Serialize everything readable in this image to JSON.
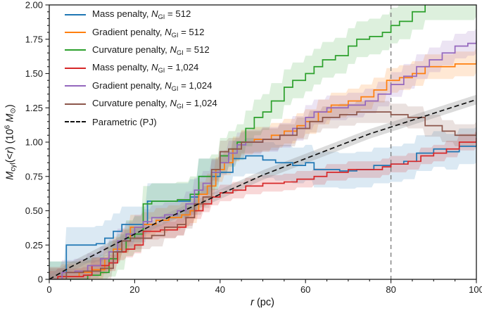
{
  "labels": {
    "y_M": "M",
    "y_cyl": "cyl",
    "y_open": "(<",
    "y_r": "r",
    "y_mid": ") (10",
    "y_exp": "6",
    "y_sp": " ",
    "y_Munit": "M",
    "y_sun": "⊙",
    "y_end": ")",
    "x_r": "r",
    "x_unit": " (pc)"
  },
  "legend": {
    "n_symbol": "N",
    "n_sub": "GI",
    "equals": " = "
  },
  "chart_data": {
    "type": "line",
    "title": "",
    "xlabel": "r (pc)",
    "ylabel": "M_cyl(<r) (10^6 M_sun)",
    "xlim": [
      0,
      100
    ],
    "ylim": [
      0,
      2.0
    ],
    "grid": false,
    "legend_position": "upper left",
    "x_major_ticks": [
      0,
      20,
      40,
      60,
      80,
      100
    ],
    "x_tick_labels": [
      "0",
      "20",
      "40",
      "60",
      "80",
      "100"
    ],
    "y_major_ticks": [
      0,
      0.25,
      0.5,
      0.75,
      1.0,
      1.25,
      1.5,
      1.75,
      2.0
    ],
    "y_tick_labels": [
      "0",
      "0.25",
      "0.50",
      "0.75",
      "1.00",
      "1.25",
      "1.50",
      "1.75",
      "2.00"
    ],
    "x_minor_step": 5,
    "y_minor_step": 0.05,
    "vline_x": 80,
    "vline_color": "#808080",
    "series": [
      {
        "label_prefix": "Mass penalty, ",
        "n_value": "512",
        "color": "#1f77b4",
        "style": "step",
        "band_halfwidth": 0.13,
        "band_alpha": 0.16,
        "points": [
          [
            0,
            0
          ],
          [
            4,
            0.25
          ],
          [
            11,
            0.26
          ],
          [
            13,
            0.3
          ],
          [
            15,
            0.35
          ],
          [
            17,
            0.4
          ],
          [
            23,
            0.57
          ],
          [
            33,
            0.6
          ],
          [
            35,
            0.75
          ],
          [
            40,
            0.78
          ],
          [
            43,
            0.88
          ],
          [
            46,
            0.9
          ],
          [
            50,
            0.87
          ],
          [
            53,
            0.85
          ],
          [
            57,
            0.83
          ],
          [
            60,
            0.85
          ],
          [
            62,
            0.8
          ],
          [
            68,
            0.79
          ],
          [
            72,
            0.8
          ],
          [
            76,
            0.83
          ],
          [
            80,
            0.84
          ],
          [
            83,
            0.86
          ],
          [
            86,
            0.92
          ],
          [
            90,
            0.95
          ],
          [
            93,
            0.93
          ],
          [
            96,
            0.97
          ],
          [
            100,
            0.98
          ]
        ]
      },
      {
        "label_prefix": "Gradient penalty, ",
        "n_value": "512",
        "color": "#ff7f0e",
        "style": "step",
        "band_halfwidth": 0.09,
        "band_alpha": 0.18,
        "points": [
          [
            0,
            0
          ],
          [
            3,
            0.02
          ],
          [
            7,
            0.05
          ],
          [
            10,
            0.07
          ],
          [
            13,
            0.15
          ],
          [
            15,
            0.22
          ],
          [
            17,
            0.28
          ],
          [
            19,
            0.38
          ],
          [
            22,
            0.4
          ],
          [
            25,
            0.43
          ],
          [
            28,
            0.45
          ],
          [
            31,
            0.47
          ],
          [
            33,
            0.5
          ],
          [
            35,
            0.62
          ],
          [
            37,
            0.68
          ],
          [
            39,
            0.8
          ],
          [
            41,
            0.85
          ],
          [
            43,
            0.95
          ],
          [
            45,
            1.0
          ],
          [
            48,
            1.02
          ],
          [
            52,
            1.05
          ],
          [
            55,
            1.08
          ],
          [
            58,
            1.12
          ],
          [
            60,
            1.15
          ],
          [
            63,
            1.22
          ],
          [
            66,
            1.27
          ],
          [
            70,
            1.3
          ],
          [
            73,
            1.33
          ],
          [
            76,
            1.38
          ],
          [
            79,
            1.45
          ],
          [
            82,
            1.47
          ],
          [
            85,
            1.5
          ],
          [
            88,
            1.55
          ],
          [
            92,
            1.55
          ],
          [
            95,
            1.57
          ],
          [
            100,
            1.6
          ]
        ]
      },
      {
        "label_prefix": "Curvature penalty, ",
        "n_value": "512",
        "color": "#2ca02c",
        "style": "step",
        "band_halfwidth": 0.13,
        "band_alpha": 0.16,
        "points": [
          [
            0,
            0
          ],
          [
            9,
            0.03
          ],
          [
            12,
            0.05
          ],
          [
            14,
            0.15
          ],
          [
            16,
            0.2
          ],
          [
            18,
            0.3
          ],
          [
            20,
            0.33
          ],
          [
            22,
            0.55
          ],
          [
            24,
            0.57
          ],
          [
            30,
            0.58
          ],
          [
            33,
            0.62
          ],
          [
            35,
            0.75
          ],
          [
            38,
            0.78
          ],
          [
            40,
            0.9
          ],
          [
            42,
            0.95
          ],
          [
            44,
            1.0
          ],
          [
            46,
            1.1
          ],
          [
            48,
            1.18
          ],
          [
            50,
            1.22
          ],
          [
            52,
            1.3
          ],
          [
            55,
            1.4
          ],
          [
            57,
            1.45
          ],
          [
            60,
            1.5
          ],
          [
            62,
            1.55
          ],
          [
            64,
            1.6
          ],
          [
            67,
            1.63
          ],
          [
            70,
            1.7
          ],
          [
            72,
            1.75
          ],
          [
            75,
            1.77
          ],
          [
            78,
            1.8
          ],
          [
            80,
            1.85
          ],
          [
            82,
            1.88
          ],
          [
            85,
            1.95
          ],
          [
            88,
            2.02
          ],
          [
            100,
            2.05
          ]
        ]
      },
      {
        "label_prefix": "Mass penalty, ",
        "n_value": "1,024",
        "color": "#d62728",
        "style": "step",
        "band_halfwidth": 0.06,
        "band_alpha": 0.18,
        "points": [
          [
            0,
            0
          ],
          [
            2,
            0.02
          ],
          [
            8,
            0.03
          ],
          [
            10,
            0.1
          ],
          [
            14,
            0.12
          ],
          [
            16,
            0.2
          ],
          [
            18,
            0.22
          ],
          [
            20,
            0.25
          ],
          [
            22,
            0.35
          ],
          [
            26,
            0.36
          ],
          [
            30,
            0.38
          ],
          [
            32,
            0.45
          ],
          [
            34,
            0.5
          ],
          [
            36,
            0.55
          ],
          [
            38,
            0.6
          ],
          [
            40,
            0.63
          ],
          [
            43,
            0.65
          ],
          [
            46,
            0.68
          ],
          [
            50,
            0.7
          ],
          [
            55,
            0.71
          ],
          [
            58,
            0.73
          ],
          [
            62,
            0.75
          ],
          [
            65,
            0.78
          ],
          [
            70,
            0.8
          ],
          [
            74,
            0.8
          ],
          [
            78,
            0.82
          ],
          [
            80,
            0.84
          ],
          [
            84,
            0.86
          ],
          [
            87,
            0.9
          ],
          [
            90,
            0.92
          ],
          [
            93,
            0.95
          ],
          [
            96,
            1.0
          ],
          [
            100,
            1.03
          ]
        ]
      },
      {
        "label_prefix": "Gradient penalty, ",
        "n_value": "1,024",
        "color": "#9467bd",
        "style": "step",
        "band_halfwidth": 0.09,
        "band_alpha": 0.18,
        "points": [
          [
            0,
            0
          ],
          [
            3,
            0.05
          ],
          [
            6,
            0.06
          ],
          [
            9,
            0.1
          ],
          [
            12,
            0.15
          ],
          [
            14,
            0.2
          ],
          [
            16,
            0.28
          ],
          [
            18,
            0.33
          ],
          [
            20,
            0.38
          ],
          [
            22,
            0.42
          ],
          [
            24,
            0.45
          ],
          [
            27,
            0.47
          ],
          [
            30,
            0.5
          ],
          [
            32,
            0.55
          ],
          [
            34,
            0.65
          ],
          [
            36,
            0.7
          ],
          [
            38,
            0.78
          ],
          [
            40,
            0.85
          ],
          [
            42,
            0.92
          ],
          [
            44,
            0.98
          ],
          [
            46,
            1.0
          ],
          [
            50,
            1.02
          ],
          [
            54,
            1.05
          ],
          [
            57,
            1.1
          ],
          [
            60,
            1.18
          ],
          [
            62,
            1.22
          ],
          [
            65,
            1.25
          ],
          [
            70,
            1.27
          ],
          [
            74,
            1.3
          ],
          [
            77,
            1.35
          ],
          [
            80,
            1.42
          ],
          [
            83,
            1.48
          ],
          [
            86,
            1.55
          ],
          [
            89,
            1.6
          ],
          [
            92,
            1.65
          ],
          [
            95,
            1.7
          ],
          [
            98,
            1.72
          ],
          [
            100,
            1.74
          ]
        ]
      },
      {
        "label_prefix": "Curvature penalty, ",
        "n_value": "1,024",
        "color": "#8c564b",
        "style": "step",
        "band_halfwidth": 0.08,
        "band_alpha": 0.18,
        "points": [
          [
            0,
            0
          ],
          [
            4,
            0.05
          ],
          [
            8,
            0.06
          ],
          [
            12,
            0.08
          ],
          [
            15,
            0.2
          ],
          [
            17,
            0.28
          ],
          [
            19,
            0.3
          ],
          [
            24,
            0.32
          ],
          [
            27,
            0.38
          ],
          [
            30,
            0.4
          ],
          [
            32,
            0.45
          ],
          [
            34,
            0.55
          ],
          [
            36,
            0.6
          ],
          [
            38,
            0.8
          ],
          [
            40,
            0.93
          ],
          [
            42,
            0.95
          ],
          [
            45,
            1.0
          ],
          [
            50,
            1.02
          ],
          [
            54,
            1.05
          ],
          [
            58,
            1.1
          ],
          [
            61,
            1.15
          ],
          [
            64,
            1.18
          ],
          [
            68,
            1.2
          ],
          [
            72,
            1.22
          ],
          [
            76,
            1.22
          ],
          [
            80,
            1.2
          ],
          [
            84,
            1.18
          ],
          [
            88,
            1.12
          ],
          [
            92,
            1.08
          ],
          [
            95,
            1.05
          ],
          [
            100,
            1.07
          ]
        ]
      },
      {
        "label_prefix": "Parametric (PJ)",
        "n_value": null,
        "color": "#111111",
        "style": "dashed",
        "band_halfwidth": 0.035,
        "band_alpha": 0.35,
        "band_color": "#999999",
        "points": [
          [
            0,
            0
          ],
          [
            5,
            0.09
          ],
          [
            10,
            0.17
          ],
          [
            15,
            0.25
          ],
          [
            20,
            0.33
          ],
          [
            25,
            0.41
          ],
          [
            30,
            0.48
          ],
          [
            35,
            0.55
          ],
          [
            40,
            0.62
          ],
          [
            45,
            0.69
          ],
          [
            50,
            0.76
          ],
          [
            55,
            0.82
          ],
          [
            60,
            0.88
          ],
          [
            65,
            0.94
          ],
          [
            70,
            1.0
          ],
          [
            75,
            1.06
          ],
          [
            80,
            1.11
          ],
          [
            85,
            1.16
          ],
          [
            90,
            1.21
          ],
          [
            95,
            1.26
          ],
          [
            100,
            1.31
          ]
        ]
      }
    ]
  }
}
